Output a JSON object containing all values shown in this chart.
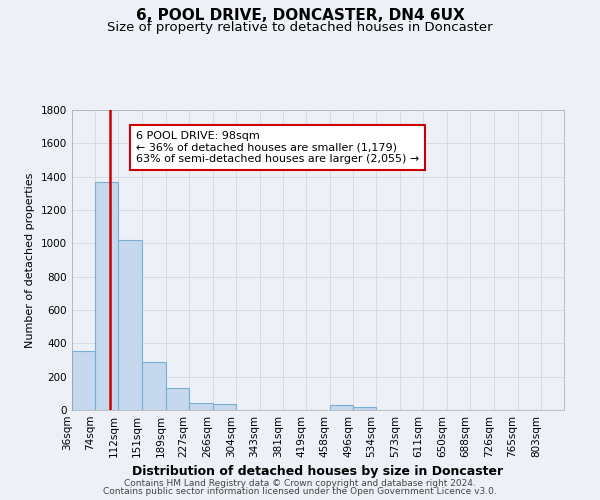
{
  "title": "6, POOL DRIVE, DONCASTER, DN4 6UX",
  "subtitle": "Size of property relative to detached houses in Doncaster",
  "xlabel": "Distribution of detached houses by size in Doncaster",
  "ylabel": "Number of detached properties",
  "bar_color": "#c5d8ee",
  "bar_edge_color": "#7aafd4",
  "categories": [
    "36sqm",
    "74sqm",
    "112sqm",
    "151sqm",
    "189sqm",
    "227sqm",
    "266sqm",
    "304sqm",
    "343sqm",
    "381sqm",
    "419sqm",
    "458sqm",
    "496sqm",
    "534sqm",
    "573sqm",
    "611sqm",
    "650sqm",
    "688sqm",
    "726sqm",
    "765sqm",
    "803sqm"
  ],
  "values": [
    355,
    1370,
    1020,
    290,
    130,
    45,
    35,
    0,
    0,
    0,
    0,
    30,
    20,
    0,
    0,
    0,
    0,
    0,
    0,
    0,
    0
  ],
  "bin_edges": [
    36,
    74,
    112,
    151,
    189,
    227,
    266,
    304,
    343,
    381,
    419,
    458,
    496,
    534,
    573,
    611,
    650,
    688,
    726,
    765,
    803,
    841
  ],
  "property_size": 98,
  "vline_color": "#cc0000",
  "annotation_line1": "6 POOL DRIVE: 98sqm",
  "annotation_line2": "← 36% of detached houses are smaller (1,179)",
  "annotation_line3": "63% of semi-detached houses are larger (2,055) →",
  "annotation_box_color": "#ffffff",
  "annotation_box_edge_color": "#cc0000",
  "ylim": [
    0,
    1800
  ],
  "yticks": [
    0,
    200,
    400,
    600,
    800,
    1000,
    1200,
    1400,
    1600,
    1800
  ],
  "grid_color": "#d0d8e4",
  "bg_color": "#edf1f7",
  "plot_bg_color": "#edf1f7",
  "footer_line1": "Contains HM Land Registry data © Crown copyright and database right 2024.",
  "footer_line2": "Contains public sector information licensed under the Open Government Licence v3.0.",
  "title_fontsize": 11,
  "subtitle_fontsize": 9.5,
  "xlabel_fontsize": 9,
  "ylabel_fontsize": 8,
  "tick_fontsize": 7.5,
  "annotation_fontsize": 8,
  "footer_fontsize": 6.5
}
